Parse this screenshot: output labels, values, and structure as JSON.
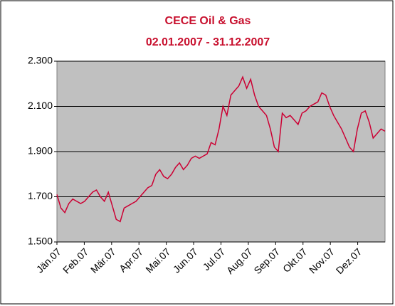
{
  "chart_data": {
    "type": "line",
    "title": "CECE Oil & Gas",
    "subtitle": "02.01.2007 - 31.12.2007",
    "color": "#cc0033",
    "grid": true,
    "ylim": [
      1500,
      2300
    ],
    "yticks": [
      {
        "value": 1500,
        "label": "1.500"
      },
      {
        "value": 1700,
        "label": "1.700"
      },
      {
        "value": 1900,
        "label": "1.900"
      },
      {
        "value": 2100,
        "label": "2.100"
      },
      {
        "value": 2300,
        "label": "2.300"
      }
    ],
    "xlim": [
      0,
      12
    ],
    "xticks": [
      {
        "value": 0,
        "label": "Jän.07"
      },
      {
        "value": 1,
        "label": "Feb.07"
      },
      {
        "value": 2,
        "label": "Mär.07"
      },
      {
        "value": 3,
        "label": "Apr.07"
      },
      {
        "value": 4,
        "label": "Mai.07"
      },
      {
        "value": 5,
        "label": "Jun.07"
      },
      {
        "value": 6,
        "label": "Jul.07"
      },
      {
        "value": 7,
        "label": "Aug.07"
      },
      {
        "value": 8,
        "label": "Sep.07"
      },
      {
        "value": 9,
        "label": "Okt.07"
      },
      {
        "value": 10,
        "label": "Nov.07"
      },
      {
        "value": 11,
        "label": "Dez.07"
      }
    ],
    "values": [
      1710,
      1650,
      1630,
      1670,
      1690,
      1680,
      1670,
      1680,
      1700,
      1720,
      1730,
      1700,
      1680,
      1720,
      1660,
      1600,
      1590,
      1650,
      1660,
      1670,
      1680,
      1700,
      1720,
      1740,
      1750,
      1800,
      1820,
      1790,
      1780,
      1800,
      1830,
      1850,
      1820,
      1840,
      1870,
      1880,
      1870,
      1880,
      1890,
      1940,
      1930,
      2000,
      2100,
      2060,
      2150,
      2170,
      2190,
      2230,
      2180,
      2220,
      2150,
      2100,
      2080,
      2060,
      2000,
      1920,
      1900,
      2070,
      2050,
      2060,
      2040,
      2020,
      2070,
      2080,
      2100,
      2110,
      2120,
      2160,
      2150,
      2100,
      2060,
      2030,
      2000,
      1960,
      1920,
      1900,
      2000,
      2070,
      2080,
      2030,
      1960,
      1980,
      2000,
      1990
    ]
  }
}
